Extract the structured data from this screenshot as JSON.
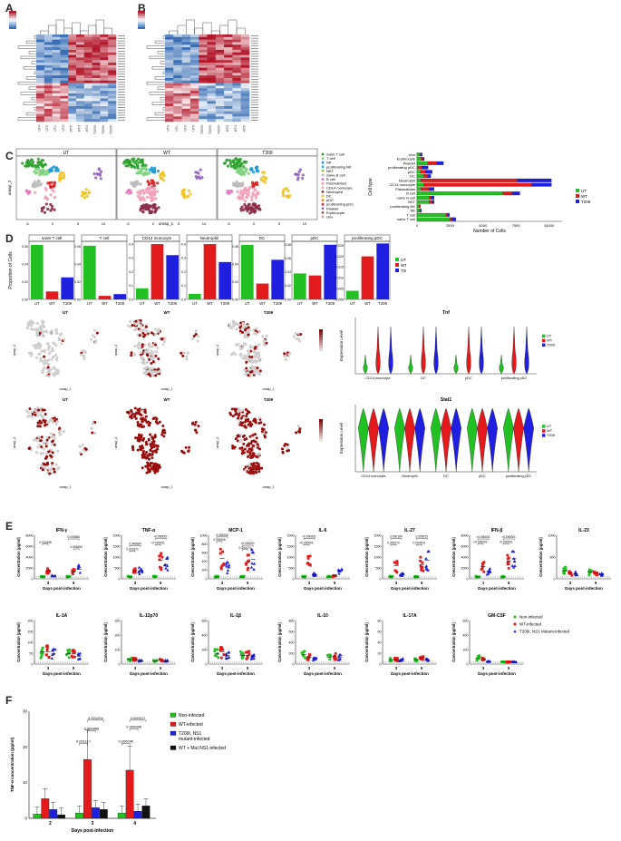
{
  "panel_labels": {
    "A": "A",
    "B": "B",
    "C": "C",
    "D": "D",
    "E": "E",
    "F": "F"
  },
  "colors": {
    "ut": "#22c022",
    "wt": "#e31a1c",
    "t209": "#1f1fe0",
    "mut": "#111111",
    "heat_low": "#3a6fb5",
    "heat_high": "#b2182b"
  },
  "heatmaps": {
    "A": {
      "col_labels": [
        "UT4",
        "UT3",
        "UT1",
        "UT2",
        "WT5",
        "WT3",
        "WT4",
        "T2093",
        "T2094",
        "T2095"
      ]
    },
    "B": {
      "col_labels": [
        "UT4",
        "UT1",
        "UT2",
        "UT3",
        "T2093",
        "T2095",
        "T2094",
        "WT3",
        "WT4",
        "WT5"
      ]
    }
  },
  "umap_titles": [
    "UT",
    "WT",
    "T209"
  ],
  "umap_xlabel": "umap_1",
  "umap_ylabel": "umap_2",
  "celltype_legend": [
    "naive T cell",
    "T cell",
    "NK",
    "proliferating NK",
    "NKT",
    "naive B cell",
    "B cell",
    "Plasmablast",
    "CD14 monocyte",
    "Neutrophil",
    "DC",
    "pDC",
    "proliferating pDC",
    "Platelet",
    "Erythrocyte",
    "Unn"
  ],
  "celltype_colors": [
    "#2ca02c",
    "#7fd37f",
    "#1f9ad6",
    "#17becf",
    "#9acd32",
    "#bbbbbb",
    "#e377c2",
    "#ff9896",
    "#f4a0b9",
    "#8c2d4a",
    "#f0c419",
    "#ff7f0e",
    "#d62728",
    "#9467bd",
    "#8c564b",
    "#c49c94"
  ],
  "chart_data": [
    {
      "type": "bar",
      "orientation": "horizontal",
      "id": "counts",
      "ylabel": "Cell type",
      "xlabel": "Number of Cells",
      "xticks": [
        "0",
        "2500",
        "5000",
        "7500",
        "10000"
      ],
      "xlim": [
        0,
        11000
      ],
      "categories": [
        "naive T cell",
        "T cell",
        "NK",
        "proliferating NK",
        "NKT",
        "naive B cell",
        "B cell",
        "Plasmablast",
        "CD14 monocyte",
        "Neutrophil",
        "DC",
        "pDC",
        "proliferating pDC",
        "Platelet",
        "Erythrocyte",
        "Unn"
      ],
      "series": [
        {
          "name": "UT",
          "values": [
            2500,
            2200,
            200,
            150,
            900,
            900,
            6500,
            300,
            500,
            300,
            500,
            250,
            50,
            800,
            300,
            200
          ]
        },
        {
          "name": "WT",
          "values": [
            150,
            120,
            80,
            60,
            250,
            200,
            700,
            600,
            8200,
            7300,
            300,
            400,
            300,
            700,
            150,
            100
          ]
        },
        {
          "name": "T209",
          "values": [
            300,
            150,
            60,
            50,
            150,
            200,
            600,
            400,
            1500,
            2600,
            250,
            500,
            500,
            500,
            100,
            100
          ]
        }
      ],
      "legend": [
        "UT",
        "WT",
        "T209"
      ]
    },
    {
      "type": "bar",
      "id": "proportions",
      "ylabel": "Proportion of Cells",
      "categories": [
        "UT",
        "WT",
        "T209"
      ],
      "subplots": [
        {
          "title": "naive T cell",
          "values": [
            0.062,
            0.009,
            0.025
          ],
          "ylim": [
            0,
            0.066
          ],
          "yticks": [
            "0.00",
            "0.02",
            "0.04",
            "0.06"
          ]
        },
        {
          "title": "T cell",
          "values": [
            0.061,
            0.004,
            0.006
          ],
          "ylim": [
            0,
            0.066
          ],
          "yticks": [
            "0.00",
            "0.02",
            "0.04",
            "0.06"
          ]
        },
        {
          "title": "CD14 monocyte",
          "values": [
            0.08,
            0.4,
            0.32
          ],
          "ylim": [
            0,
            0.42
          ],
          "yticks": [
            "0.0",
            "0.1",
            "0.2",
            "0.3",
            "0.4"
          ]
        },
        {
          "title": "Neutrophil",
          "values": [
            0.04,
            0.4,
            0.27
          ],
          "ylim": [
            0,
            0.42
          ],
          "yticks": [
            "0.0",
            "0.1",
            "0.2",
            "0.3",
            "0.4"
          ]
        },
        {
          "title": "DC",
          "values": [
            0.062,
            0.018,
            0.045
          ],
          "ylim": [
            0,
            0.066
          ],
          "yticks": [
            "0.00",
            "0.02",
            "0.04",
            "0.06"
          ]
        },
        {
          "title": "pDC",
          "values": [
            0.038,
            0.035,
            0.08
          ],
          "ylim": [
            0,
            0.085
          ],
          "yticks": [
            "0.00",
            "0.02",
            "0.04",
            "0.06",
            "0.08"
          ]
        },
        {
          "title": "proliferating pDC",
          "values": [
            0.004,
            0.02,
            0.026
          ],
          "ylim": [
            0,
            0.027
          ],
          "yticks": [
            "0.000",
            "0.005",
            "0.010",
            "0.015",
            "0.020",
            "0.025"
          ]
        }
      ],
      "legend": [
        "UT",
        "WT",
        "T209"
      ]
    },
    {
      "type": "violin",
      "id": "tnf",
      "title": "Tnf",
      "ylabel": "Expression Level",
      "categories": [
        "CD14 monocyte",
        "DC",
        "pDC",
        "proliferating pDC"
      ],
      "legend": [
        "UT",
        "WT",
        "T209"
      ]
    },
    {
      "type": "violin",
      "id": "stat1",
      "title": "Stat1",
      "ylabel": "Expression Level",
      "categories": [
        "CD14 monocyte",
        "Neutrophil",
        "DC",
        "pDC",
        "proliferating pDC"
      ],
      "legend": [
        "UT",
        "WT",
        "T209"
      ]
    },
    {
      "type": "scatter",
      "id": "cytokines",
      "xlabel": "Days post-infection",
      "ylabel": "Concentration (pg/ml)",
      "legend": [
        "Non-infected",
        "WT-infected",
        "T209I, NS1 Mutant-infected"
      ],
      "subplots": [
        {
          "title": "IFN-γ",
          "yticks": [
            "0",
            "2000",
            "4000",
            "6000",
            "8000"
          ],
          "ymax": 8000,
          "x": [
            "3",
            "5"
          ],
          "means": [
            [
              0,
              1200,
              200
            ],
            [
              0,
              1000,
              1500
            ]
          ],
          "pvals": [
            {
              "text": "0.021698",
              "from": [
                0,
                1
              ],
              "to": [
                0,
                0
              ],
              "y": 6300
            },
            {
              "text": "0.000386",
              "from": [
                1,
                0
              ],
              "to": [
                1,
                2
              ],
              "y": 7300
            },
            {
              "text": "0.006394",
              "from": [
                1,
                1
              ],
              "to": [
                1,
                2
              ],
              "y": 5400
            }
          ]
        },
        {
          "title": "TNF-α",
          "yticks": [
            "0",
            "500",
            "1000",
            "1500",
            "2000"
          ],
          "ymax": 2000,
          "x": [
            "3",
            "5"
          ],
          "means": [
            [
              0,
              300,
              300
            ],
            [
              0,
              800,
              600
            ]
          ],
          "pvals": [
            {
              "text": "0.040864",
              "from": [
                0,
                0
              ],
              "to": [
                0,
                2
              ],
              "y": 1500
            },
            {
              "text": "0.021872",
              "from": [
                0,
                0
              ],
              "to": [
                0,
                1
              ],
              "y": 1250
            },
            {
              "text": "<0.000001",
              "from": [
                1,
                0
              ],
              "to": [
                1,
                2
              ],
              "y": 1850
            },
            {
              "text": "<0.000001",
              "from": [
                1,
                0
              ],
              "to": [
                1,
                1
              ],
              "y": 1550
            }
          ]
        },
        {
          "title": "MCP-1",
          "yticks": [
            "0",
            "200",
            "400",
            "600",
            "800",
            "1000"
          ],
          "ymax": 1000,
          "x": [
            "3",
            "5"
          ],
          "means": [
            [
              0,
              450,
              220
            ],
            [
              0,
              350,
              420
            ]
          ],
          "pvals": [
            {
              "text": "0.000006",
              "from": [
                0,
                0
              ],
              "to": [
                0,
                2
              ],
              "y": 960
            },
            {
              "text": "0.000006",
              "from": [
                0,
                0
              ],
              "to": [
                0,
                1
              ],
              "y": 850
            },
            {
              "text": "<0.000001",
              "from": [
                1,
                0
              ],
              "to": [
                1,
                2
              ],
              "y": 760
            },
            {
              "text": "0.000173",
              "from": [
                1,
                0
              ],
              "to": [
                1,
                1
              ],
              "y": 660
            }
          ]
        },
        {
          "title": "IL-6",
          "yticks": [
            "0",
            "500",
            "1000",
            "1500",
            "2000"
          ],
          "ymax": 2000,
          "x": [
            "3",
            "5"
          ],
          "means": [
            [
              0,
              650,
              120
            ],
            [
              0,
              50,
              280
            ]
          ],
          "pvals": [
            {
              "text": "<0.000001",
              "from": [
                0,
                0
              ],
              "to": [
                0,
                2
              ],
              "y": 1850
            },
            {
              "text": "<0.000001",
              "from": [
                0,
                0
              ],
              "to": [
                0,
                1
              ],
              "y": 1550
            }
          ]
        },
        {
          "title": "IL-27",
          "yticks": [
            "0",
            "500",
            "1000",
            "1500",
            "2000"
          ],
          "ymax": 2000,
          "x": [
            "3",
            "5"
          ],
          "means": [
            [
              0,
              550,
              120
            ],
            [
              0,
              600,
              800
            ]
          ],
          "pvals": [
            {
              "text": "0.000164",
              "from": [
                0,
                0
              ],
              "to": [
                0,
                2
              ],
              "y": 1850
            },
            {
              "text": "0.000270",
              "from": [
                0,
                0
              ],
              "to": [
                0,
                1
              ],
              "y": 1550
            },
            {
              "text": "0.000015",
              "from": [
                1,
                0
              ],
              "to": [
                1,
                2
              ],
              "y": 1850
            },
            {
              "text": "0.000423",
              "from": [
                1,
                0
              ],
              "to": [
                1,
                1
              ],
              "y": 1550
            }
          ]
        },
        {
          "title": "IFN-β",
          "yticks": [
            "0",
            "2000",
            "4000",
            "6000",
            "8000"
          ],
          "ymax": 8000,
          "x": [
            "1",
            "5"
          ],
          "means": [
            [
              0,
              2000,
              1100
            ],
            [
              0,
              3000,
              3500
            ]
          ],
          "pvals": [
            {
              "text": "<0.000001",
              "from": [
                0,
                0
              ],
              "to": [
                0,
                2
              ],
              "y": 7300
            },
            {
              "text": "<0.000001",
              "from": [
                0,
                0
              ],
              "to": [
                0,
                1
              ],
              "y": 6400
            },
            {
              "text": "<0.000001",
              "from": [
                1,
                0
              ],
              "to": [
                1,
                2
              ],
              "y": 7300
            },
            {
              "text": "<0.000001",
              "from": [
                1,
                0
              ],
              "to": [
                1,
                1
              ],
              "y": 6400
            }
          ]
        },
        {
          "title": "IL-23",
          "yticks": [
            "0",
            "500",
            "1000"
          ],
          "ymax": 1000,
          "x": [
            "3",
            "5"
          ],
          "means": [
            [
              150,
              100,
              80
            ],
            [
              120,
              100,
              60
            ]
          ],
          "pvals": []
        },
        {
          "title": "IL-1A",
          "yticks": [
            "0",
            "50",
            "100",
            "150",
            "200"
          ],
          "ymax": 200,
          "x": [
            "3",
            "5"
          ],
          "means": [
            [
              50,
              50,
              40
            ],
            [
              40,
              40,
              30
            ]
          ],
          "pvals": []
        },
        {
          "title": "IL-12p70",
          "yticks": [
            "0",
            "100",
            "200",
            "300"
          ],
          "ymax": 300,
          "x": [
            "3",
            "5"
          ],
          "means": [
            [
              20,
              20,
              10
            ],
            [
              10,
              15,
              10
            ]
          ],
          "pvals": []
        },
        {
          "title": "IL-1β",
          "yticks": [
            "0",
            "200",
            "400",
            "600"
          ],
          "ymax": 600,
          "x": [
            "3",
            "5"
          ],
          "means": [
            [
              120,
              150,
              100
            ],
            [
              100,
              100,
              80
            ]
          ],
          "pvals": []
        },
        {
          "title": "IL-10",
          "yticks": [
            "0",
            "200",
            "400",
            "600",
            "800"
          ],
          "ymax": 800,
          "x": [
            "3",
            "5"
          ],
          "means": [
            [
              150,
              100,
              80
            ],
            [
              100,
              120,
              90
            ]
          ],
          "pvals": []
        },
        {
          "title": "IL-17A",
          "yticks": [
            "0",
            "20",
            "40",
            "60",
            "80"
          ],
          "ymax": 80,
          "x": [
            "3",
            "5"
          ],
          "means": [
            [
              5,
              5,
              5
            ],
            [
              5,
              8,
              5
            ]
          ],
          "pvals": []
        },
        {
          "title": "GM-CSF",
          "yticks": [
            "0",
            "200",
            "400",
            "600"
          ],
          "ymax": 600,
          "x": [
            "3",
            "5"
          ],
          "means": [
            [
              60,
              40,
              10
            ],
            [
              5,
              5,
              5
            ]
          ],
          "pvals": []
        }
      ]
    },
    {
      "type": "bar",
      "id": "tnf_f",
      "xlabel": "Days post-infection",
      "ylabel": "TNF-α concentration (pg/ml)",
      "categories": [
        "2",
        "3",
        "4"
      ],
      "ylim": [
        0,
        30
      ],
      "yticks": [
        "0",
        "10",
        "20",
        "30"
      ],
      "series": [
        {
          "name": "Non-infected",
          "values": [
            1.2,
            1.5,
            1.5
          ]
        },
        {
          "name": "WT-infected",
          "values": [
            5.5,
            16.5,
            13.5
          ]
        },
        {
          "name": "T209I, NS1 mutant-infected",
          "values": [
            2.5,
            3.0,
            2.0
          ]
        },
        {
          "name": "WT + Mut NS1-infected",
          "values": [
            1.0,
            2.5,
            3.5
          ]
        }
      ],
      "pvals": [
        {
          "text": "0.001204",
          "y": 27.5
        },
        {
          "text": "0.008868",
          "y": 24.5
        },
        {
          "text": "0.001117",
          "y": 21.0
        },
        {
          "text": "0.000417",
          "y": 27.5
        },
        {
          "text": "0.000985",
          "y": 25.0
        },
        {
          "text": "0.000096",
          "y": 21.0
        }
      ]
    }
  ]
}
